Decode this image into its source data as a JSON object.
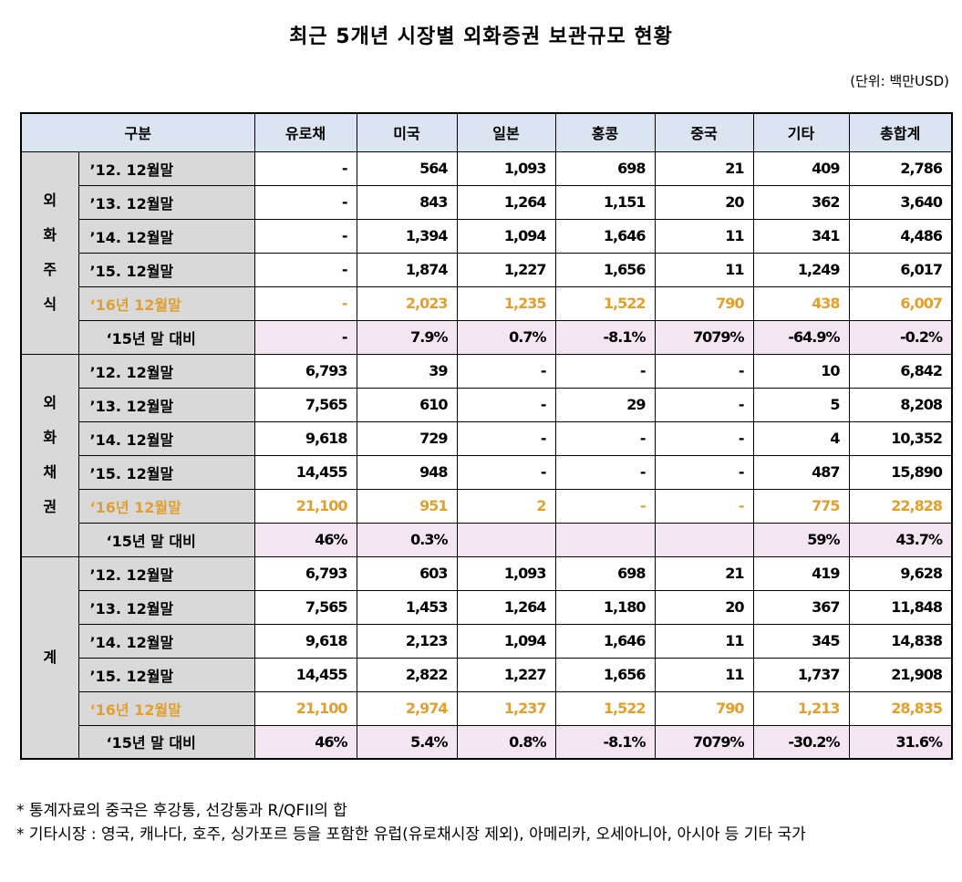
{
  "header": {
    "title": "최근 5개년 시장별 외화증권 보관규모 현황",
    "unit": "(단위: 백만USD)"
  },
  "table": {
    "columns": [
      "구분",
      "유로채",
      "미국",
      "일본",
      "홍콩",
      "중국",
      "기타",
      "총합계"
    ],
    "groups": [
      {
        "label": "외화주식",
        "rows": [
          {
            "label": "’12. 12월말",
            "values": [
              "-",
              "564",
              "1,093",
              "698",
              "21",
              "409",
              "2,786"
            ]
          },
          {
            "label": "’13. 12월말",
            "values": [
              "-",
              "843",
              "1,264",
              "1,151",
              "20",
              "362",
              "3,640"
            ]
          },
          {
            "label": "’14. 12월말",
            "values": [
              "-",
              "1,394",
              "1,094",
              "1,646",
              "11",
              "341",
              "4,486"
            ]
          },
          {
            "label": "’15. 12월말",
            "values": [
              "-",
              "1,874",
              "1,227",
              "1,656",
              "11",
              "1,249",
              "6,017"
            ]
          },
          {
            "label": "‘16년 12월말",
            "values": [
              "-",
              "2,023",
              "1,235",
              "1,522",
              "790",
              "438",
              "6,007"
            ]
          },
          {
            "label": "‘15년 말 대비",
            "values": [
              "-",
              "7.9%",
              "0.7%",
              "-8.1%",
              "7079%",
              "-64.9%",
              "-0.2%"
            ]
          }
        ]
      },
      {
        "label": "외화채권",
        "rows": [
          {
            "label": "’12. 12월말",
            "values": [
              "6,793",
              "39",
              "-",
              "-",
              "-",
              "10",
              "6,842"
            ]
          },
          {
            "label": "’13. 12월말",
            "values": [
              "7,565",
              "610",
              "-",
              "29",
              "-",
              "5",
              "8,208"
            ]
          },
          {
            "label": "’14. 12월말",
            "values": [
              "9,618",
              "729",
              "-",
              "-",
              "-",
              "4",
              "10,352"
            ]
          },
          {
            "label": "’15. 12월말",
            "values": [
              "14,455",
              "948",
              "-",
              "-",
              "-",
              "487",
              "15,890"
            ]
          },
          {
            "label": "‘16년 12월말",
            "values": [
              "21,100",
              "951",
              "2",
              "-",
              "-",
              "775",
              "22,828"
            ]
          },
          {
            "label": "‘15년 말 대비",
            "values": [
              "46%",
              "0.3%",
              null,
              null,
              null,
              "59%",
              "43.7%"
            ]
          }
        ]
      },
      {
        "label": "계",
        "rows": [
          {
            "label": "’12. 12월말",
            "values": [
              "6,793",
              "603",
              "1,093",
              "698",
              "21",
              "419",
              "9,628"
            ]
          },
          {
            "label": "’13. 12월말",
            "values": [
              "7,565",
              "1,453",
              "1,264",
              "1,180",
              "20",
              "367",
              "11,848"
            ]
          },
          {
            "label": "’14. 12월말",
            "values": [
              "9,618",
              "2,123",
              "1,094",
              "1,646",
              "11",
              "345",
              "14,838"
            ]
          },
          {
            "label": "’15. 12월말",
            "values": [
              "14,455",
              "2,822",
              "1,227",
              "1,656",
              "11",
              "1,737",
              "21,908"
            ]
          },
          {
            "label": "‘16년 12월말",
            "values": [
              "21,100",
              "2,974",
              "1,237",
              "1,522",
              "790",
              "1,213",
              "28,835"
            ]
          },
          {
            "label": "‘15년 말 대비",
            "values": [
              "46%",
              "5.4%",
              "0.8%",
              "-8.1%",
              "7079%",
              "-30.2%",
              "31.6%"
            ]
          }
        ]
      }
    ]
  },
  "footnotes": [
    "* 통계자료의 중국은 후강통, 선강통과 R/QFII의 합",
    "* 기타시장 : 영국, 캐나다, 호주, 싱가포르 등을 포함한 유럽(유로채시장 제외), 아메리카, 오세아니아, 아시아 등 기타 국가"
  ]
}
